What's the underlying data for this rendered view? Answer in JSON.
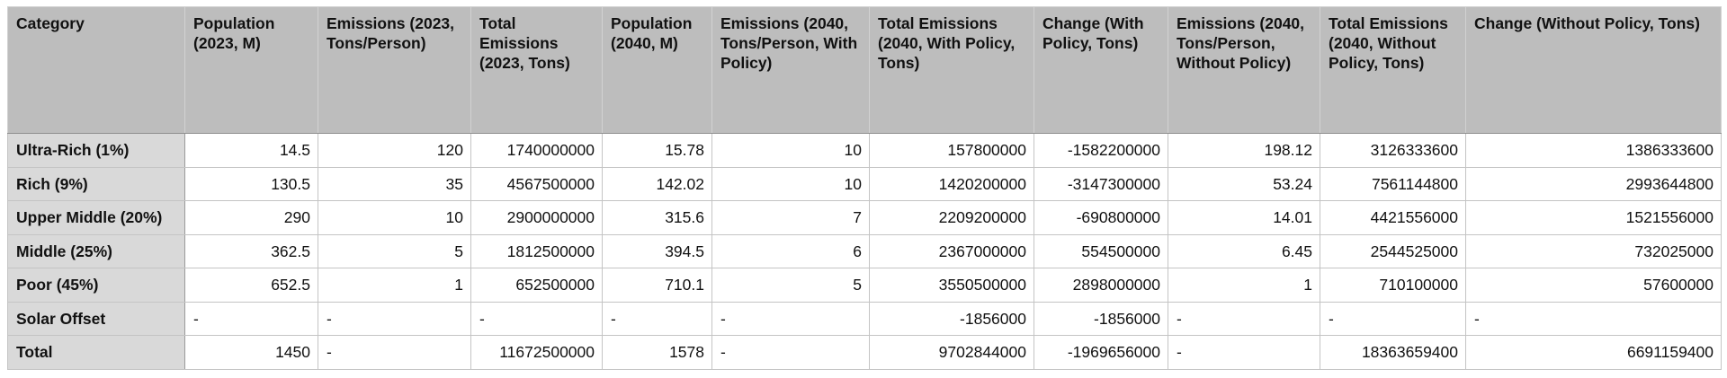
{
  "table": {
    "headers": [
      "Category",
      "Population (2023, M)",
      "Emissions (2023, Tons/Person)",
      "Total Emissions (2023, Tons)",
      "Population (2040, M)",
      "Emissions (2040, Tons/Person, With Policy)",
      "Total Emissions (2040, With Policy, Tons)",
      "Change (With Policy, Tons)",
      "Emissions (2040, Tons/Person, Without Policy)",
      "Total Emissions (2040, Without Policy, Tons)",
      "Change (Without Policy, Tons)"
    ],
    "rows": [
      [
        "Ultra-Rich (1%)",
        "14.5",
        "120",
        "1740000000",
        "15.78",
        "10",
        "157800000",
        "-1582200000",
        "198.12",
        "3126333600",
        "1386333600"
      ],
      [
        "Rich (9%)",
        "130.5",
        "35",
        "4567500000",
        "142.02",
        "10",
        "1420200000",
        "-3147300000",
        "53.24",
        "7561144800",
        "2993644800"
      ],
      [
        "Upper Middle (20%)",
        "290",
        "10",
        "2900000000",
        "315.6",
        "7",
        "2209200000",
        "-690800000",
        "14.01",
        "4421556000",
        "1521556000"
      ],
      [
        "Middle (25%)",
        "362.5",
        "5",
        "1812500000",
        "394.5",
        "6",
        "2367000000",
        "554500000",
        "6.45",
        "2544525000",
        "732025000"
      ],
      [
        "Poor (45%)",
        "652.5",
        "1",
        "652500000",
        "710.1",
        "5",
        "3550500000",
        "2898000000",
        "1",
        "710100000",
        "57600000"
      ],
      [
        "Solar Offset",
        "-",
        "-",
        "-",
        "-",
        "-",
        "-1856000",
        "-1856000",
        "-",
        "-",
        "-"
      ],
      [
        "Total",
        "1450",
        "-",
        "11672500000",
        "1578",
        "-",
        "9702844000",
        "-1969656000",
        "-",
        "18363659400",
        "6691159400"
      ]
    ]
  }
}
